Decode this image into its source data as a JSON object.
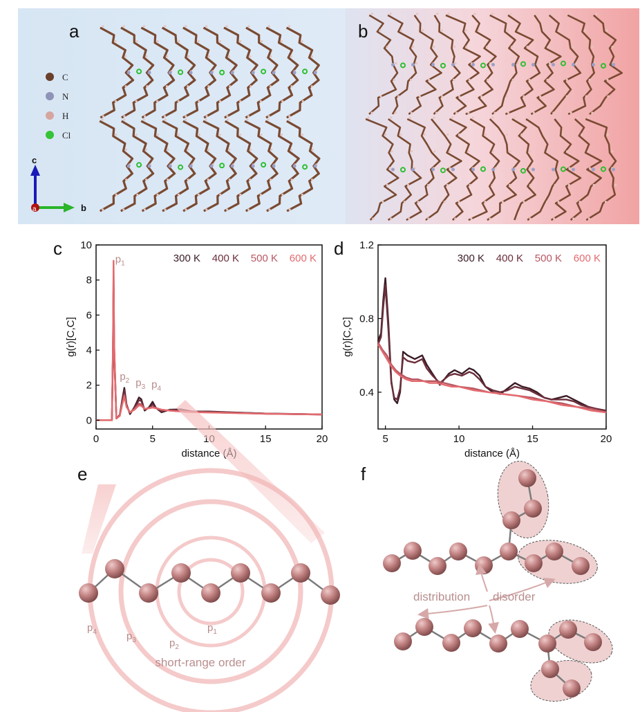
{
  "panel_labels": {
    "a": "a",
    "b": "b",
    "c": "c",
    "d": "d",
    "e": "e",
    "f": "f"
  },
  "element_legend": [
    {
      "symbol": "C",
      "color": "#6b3f2a"
    },
    {
      "symbol": "N",
      "color": "#8e93b8"
    },
    {
      "symbol": "H",
      "color": "#d6a5a0"
    },
    {
      "symbol": "Cl",
      "color": "#35c437"
    }
  ],
  "axes_triad": {
    "c": "c",
    "a": "a",
    "b": "b"
  },
  "chart_data": [
    {
      "type": "line",
      "panel": "c",
      "xlabel": "distance (Å)",
      "ylabel": "g(r)[C,C]",
      "xlim": [
        0,
        20
      ],
      "ylim": [
        -0.5,
        10
      ],
      "xticks": [
        "0",
        "5",
        "10",
        "15",
        "20"
      ],
      "yticks": [
        "0",
        "2",
        "4",
        "6",
        "8",
        "10"
      ],
      "legend_position": "top-right",
      "series": [
        {
          "name": "300 K",
          "color": "#3a1b25",
          "x": [
            0,
            1.2,
            1.4,
            1.5,
            1.55,
            1.6,
            1.8,
            2.1,
            2.3,
            2.5,
            2.7,
            3.0,
            3.4,
            3.8,
            4.0,
            4.3,
            4.7,
            5.0,
            5.3,
            5.8,
            6.5,
            7.5,
            8.5,
            10,
            12,
            15,
            17.5,
            20
          ],
          "y": [
            0,
            0,
            0,
            4.0,
            7.8,
            4.0,
            0.1,
            0.3,
            1.1,
            1.85,
            0.9,
            0.35,
            0.75,
            1.3,
            1.2,
            0.55,
            0.75,
            1.05,
            0.7,
            0.45,
            0.6,
            0.62,
            0.5,
            0.5,
            0.45,
            0.38,
            0.36,
            0.33
          ]
        },
        {
          "name": "400 K",
          "color": "#6b2e3b",
          "x": [
            0,
            1.2,
            1.4,
            1.5,
            1.55,
            1.6,
            1.8,
            2.1,
            2.3,
            2.5,
            2.7,
            3.0,
            3.4,
            3.8,
            4.0,
            4.3,
            4.7,
            5.0,
            5.3,
            5.8,
            6.5,
            7.5,
            8.5,
            10,
            12,
            15,
            17.5,
            20
          ],
          "y": [
            0,
            0,
            0,
            4.1,
            8.0,
            4.0,
            0.1,
            0.3,
            1.0,
            1.7,
            0.85,
            0.4,
            0.7,
            1.15,
            1.1,
            0.6,
            0.7,
            0.9,
            0.7,
            0.5,
            0.58,
            0.58,
            0.5,
            0.48,
            0.44,
            0.38,
            0.35,
            0.33
          ]
        },
        {
          "name": "500 K",
          "color": "#b85762",
          "x": [
            0,
            1.2,
            1.4,
            1.5,
            1.55,
            1.6,
            1.8,
            2.1,
            2.3,
            2.5,
            2.7,
            3.0,
            3.4,
            3.8,
            4.0,
            4.3,
            4.7,
            5.0,
            5.3,
            5.8,
            6.5,
            7.5,
            8.5,
            10,
            12,
            15,
            17.5,
            20
          ],
          "y": [
            0,
            0,
            0,
            4.3,
            8.6,
            4.2,
            0.1,
            0.25,
            0.9,
            1.45,
            0.8,
            0.45,
            0.65,
            0.95,
            0.9,
            0.65,
            0.7,
            0.75,
            0.7,
            0.6,
            0.55,
            0.5,
            0.47,
            0.45,
            0.42,
            0.37,
            0.35,
            0.33
          ]
        },
        {
          "name": "600 K",
          "color": "#e36a6e",
          "x": [
            0,
            1.2,
            1.4,
            1.5,
            1.55,
            1.6,
            1.8,
            2.1,
            2.3,
            2.5,
            2.7,
            3.0,
            3.4,
            3.8,
            4.0,
            4.3,
            4.7,
            5.0,
            5.3,
            5.8,
            6.5,
            7.5,
            8.5,
            10,
            12,
            15,
            17.5,
            20
          ],
          "y": [
            0,
            0,
            0,
            4.5,
            9.1,
            4.4,
            0.1,
            0.25,
            0.85,
            1.35,
            0.75,
            0.45,
            0.6,
            0.85,
            0.82,
            0.65,
            0.68,
            0.72,
            0.68,
            0.6,
            0.55,
            0.5,
            0.46,
            0.44,
            0.41,
            0.37,
            0.35,
            0.33
          ]
        }
      ],
      "peak_labels": [
        {
          "base": "p",
          "sub": "1",
          "x": 1.7,
          "y": 9.0
        },
        {
          "base": "p",
          "sub": "2",
          "x": 2.1,
          "y": 2.3
        },
        {
          "base": "p",
          "sub": "3",
          "x": 3.5,
          "y": 1.95
        },
        {
          "base": "p",
          "sub": "4",
          "x": 4.9,
          "y": 1.85
        }
      ]
    },
    {
      "type": "line",
      "panel": "d",
      "xlabel": "distance (Å)",
      "ylabel": "g(r)[C,C]",
      "xlim": [
        4.5,
        20
      ],
      "ylim": [
        0.2,
        1.2
      ],
      "xticks": [
        "5",
        "10",
        "15",
        "20"
      ],
      "yticks": [
        "0.4",
        "0.8",
        "1.2"
      ],
      "legend_position": "top-right",
      "series": [
        {
          "name": "300 K",
          "color": "#3a1b25",
          "x": [
            4.5,
            4.7,
            4.85,
            5.0,
            5.2,
            5.4,
            5.6,
            5.8,
            6.0,
            6.2,
            6.5,
            7.0,
            7.5,
            7.8,
            8.2,
            8.7,
            9.3,
            9.7,
            10.2,
            10.7,
            11.0,
            11.4,
            11.8,
            12.3,
            12.8,
            13.3,
            13.8,
            14.3,
            14.8,
            15.3,
            15.8,
            16.3,
            16.8,
            17.3,
            17.8,
            18.3,
            18.8,
            19.3,
            20
          ],
          "y": [
            0.68,
            0.72,
            0.9,
            1.02,
            0.78,
            0.46,
            0.36,
            0.34,
            0.4,
            0.62,
            0.6,
            0.58,
            0.6,
            0.55,
            0.5,
            0.44,
            0.5,
            0.52,
            0.5,
            0.53,
            0.52,
            0.49,
            0.43,
            0.4,
            0.39,
            0.42,
            0.45,
            0.43,
            0.42,
            0.4,
            0.37,
            0.36,
            0.37,
            0.38,
            0.36,
            0.34,
            0.32,
            0.31,
            0.3
          ]
        },
        {
          "name": "400 K",
          "color": "#6b2e3b",
          "x": [
            4.5,
            4.7,
            4.85,
            5.0,
            5.2,
            5.4,
            5.6,
            5.8,
            6.0,
            6.2,
            6.5,
            7.0,
            7.5,
            7.8,
            8.2,
            8.7,
            9.3,
            9.7,
            10.2,
            10.7,
            11.0,
            11.4,
            11.8,
            12.3,
            12.8,
            13.3,
            13.8,
            14.3,
            14.8,
            15.3,
            15.8,
            16.3,
            16.8,
            17.3,
            17.8,
            18.3,
            18.8,
            19.3,
            20
          ],
          "y": [
            0.66,
            0.7,
            0.86,
            0.98,
            0.74,
            0.45,
            0.37,
            0.36,
            0.42,
            0.59,
            0.57,
            0.56,
            0.58,
            0.53,
            0.49,
            0.45,
            0.49,
            0.5,
            0.49,
            0.51,
            0.5,
            0.47,
            0.43,
            0.41,
            0.4,
            0.41,
            0.43,
            0.42,
            0.41,
            0.39,
            0.37,
            0.36,
            0.36,
            0.36,
            0.35,
            0.33,
            0.32,
            0.31,
            0.3
          ]
        },
        {
          "name": "500 K",
          "color": "#b85762",
          "x": [
            4.5,
            4.8,
            5.1,
            5.4,
            5.7,
            6.0,
            6.4,
            6.8,
            7.2,
            7.6,
            8.0,
            8.5,
            9.0,
            9.5,
            10,
            11,
            12,
            13,
            14,
            15,
            16,
            17,
            18,
            19,
            20
          ],
          "y": [
            0.67,
            0.63,
            0.6,
            0.55,
            0.52,
            0.5,
            0.48,
            0.47,
            0.47,
            0.46,
            0.46,
            0.46,
            0.45,
            0.44,
            0.43,
            0.42,
            0.4,
            0.39,
            0.38,
            0.37,
            0.35,
            0.34,
            0.32,
            0.31,
            0.29
          ]
        },
        {
          "name": "600 K",
          "color": "#e36a6e",
          "x": [
            4.5,
            4.8,
            5.1,
            5.4,
            5.7,
            6.0,
            6.4,
            6.8,
            7.2,
            7.6,
            8.0,
            8.5,
            9.0,
            9.5,
            10,
            11,
            12,
            13,
            14,
            15,
            16,
            17,
            18,
            19,
            20
          ],
          "y": [
            0.66,
            0.62,
            0.58,
            0.54,
            0.51,
            0.49,
            0.47,
            0.46,
            0.46,
            0.46,
            0.45,
            0.45,
            0.44,
            0.43,
            0.43,
            0.41,
            0.4,
            0.39,
            0.38,
            0.36,
            0.35,
            0.33,
            0.32,
            0.3,
            0.29
          ]
        }
      ]
    }
  ],
  "panel_e": {
    "caption": "short-range order",
    "shell_labels": [
      {
        "base": "p",
        "sub": "1"
      },
      {
        "base": "p",
        "sub": "2"
      },
      {
        "base": "p",
        "sub": "3"
      },
      {
        "base": "p",
        "sub": "4"
      }
    ]
  },
  "panel_f": {
    "left_word": "distribution",
    "right_word": "disorder"
  },
  "colors": {
    "atom_pink": "#b97a7a",
    "panel_a_bg": "#dce9f6",
    "panel_b_bg_right": "#f1a9a9",
    "chain_brown": "#7a4a32"
  }
}
